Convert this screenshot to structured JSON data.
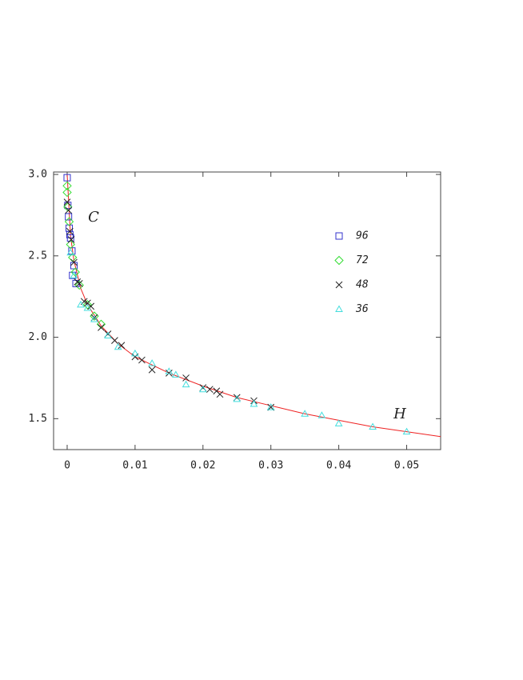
{
  "chart_data": {
    "type": "scatter",
    "x_label": "H",
    "y_label": "C",
    "xlim": [
      -0.002,
      0.055
    ],
    "ylim": [
      1.31,
      3.015
    ],
    "xticks": [
      0,
      0.01,
      0.02,
      0.03,
      0.04,
      0.05
    ],
    "yticks": [
      {
        "value": 3,
        "label": "3.0"
      },
      2.5,
      {
        "value": 2,
        "label": "2.0"
      },
      1.5
    ],
    "series": [
      {
        "name": "96",
        "color": "#3333cc",
        "marker": "square",
        "x": [
          0,
          0.0001,
          0.0002,
          0.0003,
          0.0004,
          0.0005,
          0.0007,
          0.001,
          0.0008,
          0.0013
        ],
        "values": [
          2.98,
          2.81,
          2.74,
          2.67,
          2.63,
          2.61,
          2.53,
          2.44,
          2.38,
          2.33
        ]
      },
      {
        "name": "72",
        "color": "#33dd33",
        "marker": "diamond",
        "x": [
          0,
          0,
          0.0001,
          0.0003,
          0.0005,
          0.0008,
          0.0012,
          0.0018,
          0.003,
          0.004,
          0.005
        ],
        "values": [
          2.93,
          2.89,
          2.8,
          2.71,
          2.57,
          2.49,
          2.4,
          2.32,
          2.2,
          2.13,
          2.08
        ]
      },
      {
        "name": "48",
        "color": "#222222",
        "marker": "cross",
        "x": [
          0,
          0.0002,
          0.0004,
          0.0006,
          0.001,
          0.0015,
          0.0018,
          0.0025,
          0.003,
          0.0035,
          0.004,
          0.005,
          0.006,
          0.007,
          0.008,
          0.01,
          0.011,
          0.0125,
          0.015,
          0.0175,
          0.02,
          0.021,
          0.022,
          0.0225,
          0.025,
          0.0275,
          0.03
        ],
        "values": [
          2.83,
          2.78,
          2.65,
          2.6,
          2.46,
          2.34,
          2.33,
          2.22,
          2.21,
          2.19,
          2.12,
          2.06,
          2.02,
          1.98,
          1.95,
          1.88,
          1.86,
          1.8,
          1.78,
          1.75,
          1.69,
          1.68,
          1.67,
          1.65,
          1.63,
          1.61,
          1.57
        ]
      },
      {
        "name": "36",
        "color": "#44dddd",
        "marker": "triangle",
        "x": [
          0.0005,
          0.001,
          0.002,
          0.003,
          0.004,
          0.006,
          0.0075,
          0.01,
          0.0125,
          0.015,
          0.016,
          0.0175,
          0.02,
          0.025,
          0.0275,
          0.03,
          0.035,
          0.0375,
          0.04,
          0.045,
          0.05
        ],
        "values": [
          2.52,
          2.38,
          2.2,
          2.18,
          2.11,
          2.01,
          1.94,
          1.9,
          1.84,
          1.79,
          1.77,
          1.71,
          1.68,
          1.62,
          1.59,
          1.57,
          1.53,
          1.52,
          1.47,
          1.45,
          1.42
        ]
      }
    ],
    "curve": {
      "color": "#ee2222",
      "x": [
        0,
        0.0005,
        0.001,
        0.002,
        0.003,
        0.005,
        0.0075,
        0.01,
        0.015,
        0.02,
        0.025,
        0.03,
        0.035,
        0.04,
        0.045,
        0.05,
        0.055
      ],
      "values": [
        3.0,
        2.62,
        2.47,
        2.3,
        2.2,
        2.07,
        1.96,
        1.88,
        1.78,
        1.7,
        1.63,
        1.58,
        1.53,
        1.49,
        1.45,
        1.42,
        1.39
      ]
    }
  }
}
